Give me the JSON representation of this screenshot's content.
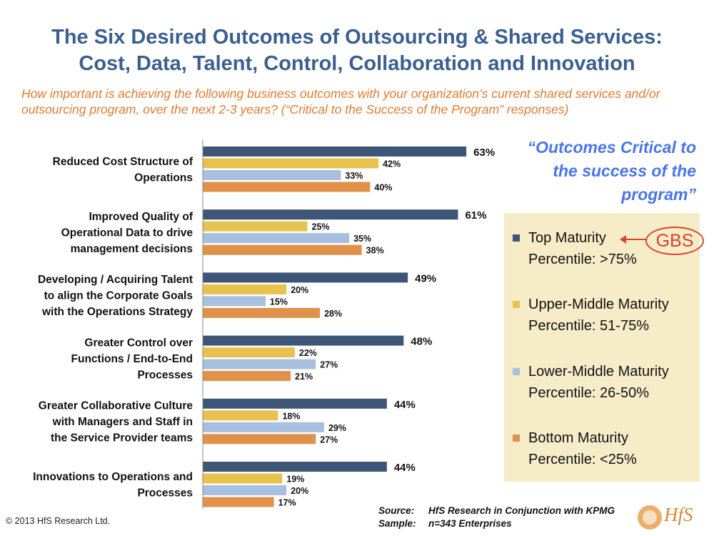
{
  "title": {
    "line1": "The Six Desired Outcomes of Outsourcing & Shared Services:",
    "line2": "Cost, Data, Talent, Control, Collaboration and Innovation"
  },
  "subtitle": "How important is achieving the following business outcomes with your organization’s current shared services and/or outsourcing program, over the next 2-3 years? (“Critical to the Success of the Program” responses)",
  "callout": {
    "line1": "“Outcomes Critical to",
    "line2": "the success of the",
    "line3": "program”"
  },
  "gbs_label": "GBS",
  "colors": {
    "top": "#3d5577",
    "upper_middle": "#e8c24e",
    "lower_middle": "#a8c0e0",
    "bottom": "#e0914a",
    "title": "#3a5f8f",
    "subtitle": "#e07b30",
    "callout": "#4a74e8",
    "legend_bg": "#f6ecc8",
    "gbs": "#d8452a"
  },
  "legend": [
    {
      "line1": "Top Maturity",
      "line2": "Percentile:  >75%",
      "color_key": "top"
    },
    {
      "line1": "Upper-Middle Maturity",
      "line2": "Percentile: 51-75%",
      "color_key": "upper_middle"
    },
    {
      "line1": "Lower-Middle Maturity",
      "line2": "Percentile: 26-50%",
      "color_key": "lower_middle"
    },
    {
      "line1": "Bottom Maturity",
      "line2": "Percentile: <25%",
      "color_key": "bottom"
    }
  ],
  "chart_data": {
    "type": "bar",
    "orientation": "horizontal",
    "categories": [
      [
        "Reduced Cost Structure of",
        "Operations"
      ],
      [
        "Improved Quality of",
        "Operational Data to drive",
        "management decisions"
      ],
      [
        "Developing / Acquiring Talent",
        "to align the Corporate Goals",
        "with the Operations Strategy"
      ],
      [
        "Greater Control over",
        "Functions / End-to-End",
        "Processes"
      ],
      [
        "Greater Collaborative Culture",
        "with Managers and Staff in",
        "the Service Provider teams"
      ],
      [
        "Innovations to Operations and",
        "Processes"
      ]
    ],
    "series": [
      {
        "name": "Top Maturity Percentile: >75%",
        "color_key": "top",
        "values": [
          63,
          61,
          49,
          48,
          44,
          44
        ]
      },
      {
        "name": "Upper-Middle Maturity Percentile: 51-75%",
        "color_key": "upper_middle",
        "values": [
          42,
          25,
          20,
          22,
          18,
          19
        ]
      },
      {
        "name": "Lower-Middle Maturity Percentile: 26-50%",
        "color_key": "lower_middle",
        "values": [
          33,
          35,
          15,
          27,
          29,
          20
        ]
      },
      {
        "name": "Bottom Maturity Percentile: <25%",
        "color_key": "bottom",
        "values": [
          40,
          38,
          28,
          21,
          27,
          17
        ]
      }
    ],
    "value_suffix": "%",
    "xlim": [
      0,
      100
    ],
    "grid": false,
    "legend_position": "right"
  },
  "footer": {
    "copyright": "© 2013 HfS Research Ltd.",
    "source_key": "Source:",
    "source_value": "HfS Research in Conjunction with KPMG",
    "sample_key": "Sample:",
    "sample_value": "n=343 Enterprises",
    "logo_text": "HfS"
  }
}
